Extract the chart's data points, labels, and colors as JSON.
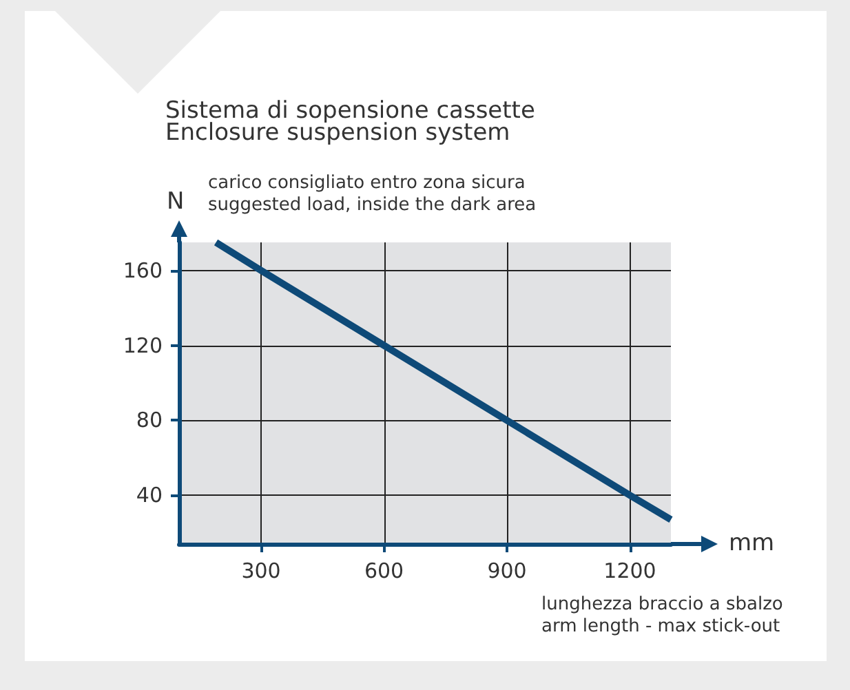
{
  "chart_data": {
    "type": "line",
    "title": "Sistema di sopensione cassette",
    "subtitle": "Enclosure suspension system",
    "xlabel": "mm",
    "ylabel": "N",
    "annotations": [
      "carico consigliato entro zona sicura\nsuggested load, inside the dark area",
      "lunghezza braccio a sbalzo\narm length - max stick-out"
    ],
    "x": [
      190,
      300,
      600,
      900,
      1200,
      1300
    ],
    "series": [
      {
        "color": "#0e4a78",
        "values": [
          175,
          160,
          120,
          80,
          40,
          27
        ]
      }
    ],
    "xlim": [
      100,
      1300
    ],
    "xticks": [
      300,
      600,
      900,
      1200
    ],
    "ylim": [
      14,
      175
    ],
    "yticks": [
      40,
      80,
      120,
      160
    ],
    "bands": [
      {
        "axis": "x",
        "from": 100,
        "to": 1300,
        "color": "#e1e2e4"
      }
    ],
    "grid": true,
    "marker": "none",
    "line_style": "solid"
  }
}
